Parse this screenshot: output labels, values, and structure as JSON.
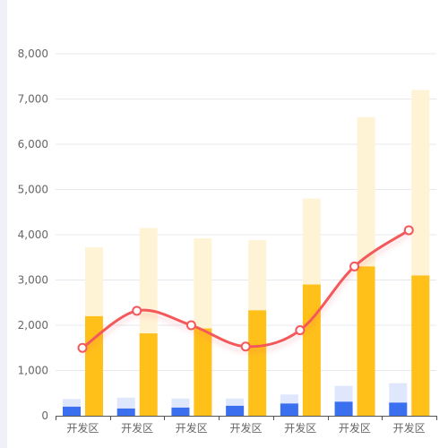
{
  "colors": {
    "blue_bar": "#3a6ff0",
    "blue_bar_bg": "#dfe7fd",
    "yellow_bar": "#ffc01a",
    "yellow_bar_bg": "#fff3d6",
    "line": "#f4585a",
    "grid": "#e6e8ee",
    "axis": "#555555"
  },
  "chart_data": {
    "type": "bar",
    "categories": [
      "开发区",
      "开发区",
      "开发区",
      "开发区",
      "开发区",
      "开发区",
      "开发区"
    ],
    "series": [
      {
        "type": "bar",
        "values": [
          200,
          160,
          180,
          220,
          270,
          310,
          290
        ]
      },
      {
        "type": "bar",
        "values": [
          370,
          400,
          380,
          380,
          470,
          660,
          720
        ]
      },
      {
        "type": "bar",
        "values": [
          2200,
          1820,
          1930,
          2330,
          2900,
          3300,
          3100
        ]
      },
      {
        "type": "bar",
        "values": [
          3720,
          4150,
          3920,
          3880,
          4800,
          6600,
          7200
        ]
      },
      {
        "type": "line",
        "values": [
          1500,
          2320,
          2000,
          1530,
          1890,
          3300,
          4100
        ]
      }
    ],
    "ylim": [
      0,
      8000
    ],
    "yticks": [
      "0",
      "1,000",
      "2,000",
      "3,000",
      "4,000",
      "5,000",
      "6,000",
      "7,000",
      "8,000"
    ],
    "grid": true,
    "legend": "none"
  }
}
